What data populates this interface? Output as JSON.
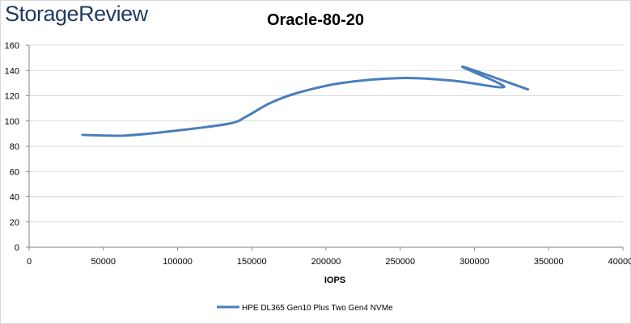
{
  "header": {
    "logo_text": "StorageReview"
  },
  "chart_data": {
    "type": "line",
    "title": "Oracle-80-20",
    "xlabel": "IOPS",
    "ylabel": "",
    "xlim": [
      0,
      400000
    ],
    "ylim": [
      0,
      160
    ],
    "x_ticks": [
      0,
      50000,
      100000,
      150000,
      200000,
      250000,
      300000,
      350000,
      400000
    ],
    "y_ticks": [
      0,
      20,
      40,
      60,
      80,
      100,
      120,
      140,
      160
    ],
    "grid": "horizontal",
    "legend_position": "bottom",
    "series": [
      {
        "name": "HPE DL365 Gen10 Plus Two Gen4 NVMe",
        "color": "#4a7ebb",
        "x": [
          36000,
          65000,
          100000,
          135000,
          147000,
          162000,
          180000,
          210000,
          250000,
          285000,
          320000,
          292000,
          336000
        ],
        "y": [
          89,
          88.5,
          92.5,
          98,
          104,
          114,
          122,
          130,
          134,
          132,
          127,
          143,
          125
        ]
      }
    ]
  }
}
